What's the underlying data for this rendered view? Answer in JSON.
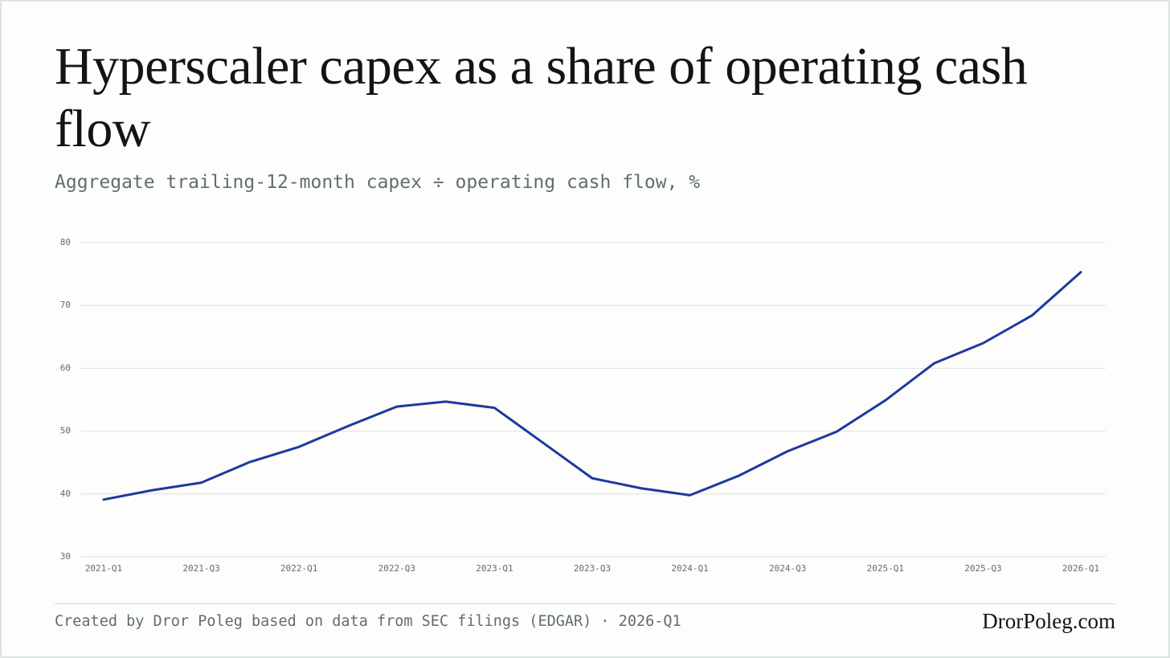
{
  "chart_data": {
    "type": "line",
    "title": "Hyperscaler capex as a share of operating cash flow",
    "subtitle": "Aggregate trailing-12-month capex ÷ operating cash flow, %",
    "source": "Created by Dror Poleg based on data from SEC filings (EDGAR) · 2026-Q1",
    "brand": "DrorPoleg.com",
    "categories": [
      "2021-Q1",
      null,
      "2021-Q3",
      null,
      "2022-Q1",
      null,
      "2022-Q3",
      null,
      "2023-Q1",
      null,
      "2023-Q3",
      null,
      "2024-Q1",
      null,
      "2024-Q3",
      null,
      "2025-Q1",
      null,
      "2025-Q3",
      null,
      "2026-Q1"
    ],
    "series": [
      {
        "name": "Capex / operating cash flow",
        "color": "#1f389f",
        "values": [
          39.1,
          40.6,
          41.8,
          45.1,
          47.5,
          50.8,
          53.9,
          54.7,
          53.7,
          48.1,
          42.5,
          40.9,
          39.8,
          42.9,
          46.8,
          49.9,
          54.9,
          60.8,
          64.0,
          68.4,
          75.3
        ]
      }
    ],
    "ylim": [
      30,
      80
    ],
    "yticks": [
      30,
      40,
      50,
      60,
      70,
      80
    ],
    "grid": true
  }
}
